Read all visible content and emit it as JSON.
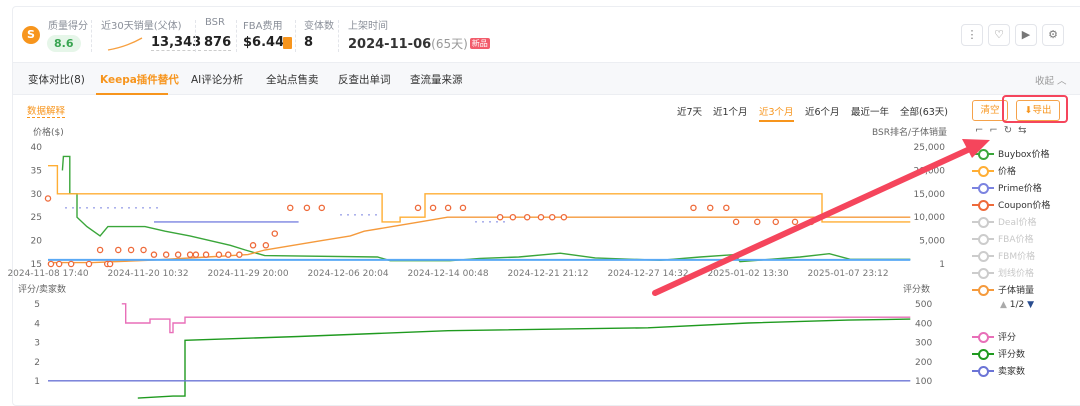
{
  "header": {
    "quality": {
      "label": "质量得分",
      "value": "8.6"
    },
    "sales30": {
      "label": "近30天销量(父体)",
      "value": "13,343"
    },
    "bsr": {
      "label": "BSR",
      "value": "876"
    },
    "fba": {
      "label": "FBA费用",
      "value": "$6.44"
    },
    "variants": {
      "label": "变体数",
      "value": "8"
    },
    "listed": {
      "label": "上架时间",
      "date": "2024-11-06",
      "days": "(65天)",
      "badge": "新品"
    },
    "icons": [
      "more-icon",
      "heart-icon",
      "video-icon",
      "settings-icon"
    ]
  },
  "tabs": [
    "变体对比(8)",
    "Keepa插件替代",
    "AI评论分析",
    "全站点售卖",
    "反查出单词",
    "查流量来源"
  ],
  "active_tab": "Keepa插件替代",
  "collapse_label": "收起 ︿",
  "data_explain": "数据解释",
  "ranges": [
    "近7天",
    "近1个月",
    "近3个月",
    "近6个月",
    "最近一年",
    "全部(63天)"
  ],
  "active_range": "近3个月",
  "buttons": {
    "clear": "清空",
    "export": "导出"
  },
  "legend_page": "1/2",
  "colors": {
    "accent": "#f7951d",
    "annotation": "#f5455c"
  },
  "chart_data": [
    {
      "type": "line",
      "ylabel_left": "价格($)",
      "ylabel_right": "BSR排名/子体销量",
      "ylim_left": [
        15,
        40
      ],
      "ylim_right": [
        1,
        25000
      ],
      "yticks_left": [
        "40",
        "35",
        "30",
        "25",
        "20",
        "15"
      ],
      "yticks_right": [
        "25,000",
        "20,000",
        "15,000",
        "10,000",
        "5,000",
        "1"
      ],
      "x_ticks": [
        "2024-11-08 17:40",
        "2024-11-20 10:32",
        "2024-11-29 20:00",
        "2024-12-06 20:04",
        "2024-12-14 00:48",
        "2024-12-21 21:12",
        "2024-12-27 14:32",
        "2025-01-02 13:30",
        "2025-01-07 23:12"
      ],
      "legend": [
        {
          "name": "Buybox价格",
          "color": "#3aa63a",
          "on": true
        },
        {
          "name": "价格",
          "color": "#ffae34",
          "on": true
        },
        {
          "name": "Prime价格",
          "color": "#7b83e0",
          "on": true
        },
        {
          "name": "Coupon价格",
          "color": "#ee6a3a",
          "on": true
        },
        {
          "name": "Deal价格",
          "color": "#cccccc",
          "on": false
        },
        {
          "name": "FBA价格",
          "color": "#cccccc",
          "on": false
        },
        {
          "name": "FBM价格",
          "color": "#cccccc",
          "on": false
        },
        {
          "name": "划线价格",
          "color": "#cccccc",
          "on": false
        },
        {
          "name": "子体销量",
          "color": "#f59a3c",
          "on": true
        }
      ],
      "series": [
        {
          "name": "Buybox价格",
          "axis": "left",
          "color": "#3aa63a",
          "points": [
            [
              "2024-11-10 10:00",
              35
            ],
            [
              "2024-11-10 13:00",
              38
            ],
            [
              "2024-11-11 07:00",
              38
            ],
            [
              "2024-11-11 07:00",
              30
            ],
            [
              "2024-11-12 03:00",
              30
            ],
            [
              "2024-11-12 03:00",
              25
            ],
            [
              "2024-11-13 07:00",
              23
            ],
            [
              "2024-11-14 20:00",
              21
            ],
            [
              "2024-11-15 18:00",
              23
            ],
            [
              "2024-11-16 23:00",
              23
            ],
            [
              "2024-11-20 02:00",
              23
            ],
            [
              "2024-11-22 01:00",
              22
            ],
            [
              "2024-11-24 09:00",
              21
            ],
            [
              "2024-11-28 04:00",
              19
            ],
            [
              "2024-11-29 14:00",
              18
            ],
            [
              "2024-12-01 00:00",
              16.8
            ],
            [
              "2024-12-08 23:00",
              16.5
            ],
            [
              "2024-12-09 21:00",
              15.7
            ],
            [
              "2024-12-14 05:00",
              15.7
            ],
            [
              "2024-12-16 13:00",
              16.2
            ],
            [
              "2024-12-19 14:00",
              16.5
            ],
            [
              "2024-12-22 14:00",
              17.3
            ],
            [
              "2024-12-24 14:00",
              16.3
            ],
            [
              "2024-12-28 08:00",
              15.8
            ],
            [
              "2024-12-30 17:00",
              16.5
            ],
            [
              "2025-01-01 19:00",
              17
            ],
            [
              "2025-01-02 02:00",
              15.5
            ],
            [
              "2025-01-05 09:00",
              16.5
            ],
            [
              "2025-01-06 23:00",
              17.2
            ],
            [
              "2025-01-08 02:00",
              16
            ],
            [
              "2025-01-11 08:00",
              16
            ]
          ]
        },
        {
          "name": "价格",
          "axis": "left",
          "color": "#ffae34",
          "points": [
            [
              "2024-11-08 17:40",
              36
            ],
            [
              "2024-11-09 20:00",
              36
            ],
            [
              "2024-11-09 20:00",
              30
            ],
            [
              "2024-12-09 07:00",
              30
            ],
            [
              "2024-12-09 07:00",
              24
            ],
            [
              "2024-12-10 14:00",
              24
            ],
            [
              "2024-12-10 14:00",
              25
            ],
            [
              "2024-12-12 09:00",
              25
            ],
            [
              "2024-12-12 09:00",
              30
            ],
            [
              "2025-01-06 13:30",
              30
            ],
            [
              "2025-01-06 13:30",
              24
            ],
            [
              "2025-01-11 08:00",
              24
            ]
          ]
        },
        {
          "name": "Prime价格",
          "axis": "left",
          "color": "#7b83e0",
          "points": [
            [
              "2024-11-21 00:00",
              24
            ],
            [
              "2024-12-03 09:00",
              24
            ]
          ]
        },
        {
          "name": "子体销量",
          "axis": "right",
          "color": "#f59a3c",
          "points": [
            [
              "2024-11-08 17:40",
              300
            ],
            [
              "2024-11-14 00:00",
              300
            ],
            [
              "2024-11-20 10:32",
              800
            ],
            [
              "2024-11-26 00:00",
              1500
            ],
            [
              "2024-11-29 20:00",
              2000
            ],
            [
              "2024-12-01 00:00",
              3000
            ],
            [
              "2024-12-03 00:00",
              4000
            ],
            [
              "2024-12-05 00:00",
              5000
            ],
            [
              "2024-12-07 00:00",
              6000
            ],
            [
              "2024-12-08 00:00",
              7000
            ],
            [
              "2024-12-10 00:00",
              8000
            ],
            [
              "2024-12-12 00:00",
              9000
            ],
            [
              "2024-12-14 00:00",
              10000
            ],
            [
              "2025-01-11 08:00",
              10000
            ]
          ]
        },
        {
          "axis": "right",
          "color": "#5aa9f5",
          "points": [
            [
              "2024-11-08 17:40",
              876
            ],
            [
              "2025-01-11 08:00",
              876
            ]
          ]
        }
      ],
      "coupon_points": [
        [
          "2024-11-08 17:40",
          29
        ],
        [
          "2024-11-09 02:00",
          15
        ],
        [
          "2024-11-10 01:00",
          15
        ],
        [
          "2024-11-11 10:40",
          15
        ],
        [
          "2024-11-13 12:50",
          15
        ],
        [
          "2024-11-14 20:00",
          18
        ],
        [
          "2024-11-15 16:00",
          15
        ],
        [
          "2024-11-16 00:00",
          15
        ],
        [
          "2024-11-16 23:00",
          18
        ],
        [
          "2024-11-18 11:00",
          18
        ],
        [
          "2024-11-19 22:00",
          18
        ],
        [
          "2024-11-21 00:00",
          17
        ],
        [
          "2024-11-22 03:30",
          17
        ],
        [
          "2024-11-23 06:30",
          17
        ],
        [
          "2024-11-24 09:30",
          17
        ],
        [
          "2024-11-24 22:30",
          17
        ],
        [
          "2024-11-25 21:30",
          17
        ],
        [
          "2024-11-27 02:30",
          17
        ],
        [
          "2024-11-27 23:30",
          17
        ],
        [
          "2024-11-29 00:30",
          17
        ],
        [
          "2024-11-30 04:30",
          19
        ],
        [
          "2024-12-01 02:00",
          19
        ],
        [
          "2024-12-01 17:00",
          21.5
        ],
        [
          "2024-12-02 19:00",
          27
        ],
        [
          "2024-12-03 23:00",
          27
        ],
        [
          "2024-12-05 00:00",
          27
        ],
        [
          "2024-12-11 21:00",
          27
        ],
        [
          "2024-12-12 23:00",
          27
        ],
        [
          "2024-12-14 01:00",
          27
        ],
        [
          "2024-12-15 05:00",
          27
        ],
        [
          "2024-12-18 03:00",
          25
        ],
        [
          "2024-12-19 03:00",
          25
        ],
        [
          "2024-12-20 06:00",
          25
        ],
        [
          "2024-12-21 08:00",
          25
        ],
        [
          "2024-12-22 03:00",
          25
        ],
        [
          "2024-12-22 19:00",
          25
        ],
        [
          "2024-12-30 07:30",
          27
        ],
        [
          "2024-12-31 07:30",
          27
        ],
        [
          "2025-01-01 06:30",
          27
        ],
        [
          "2025-01-01 20:30",
          24
        ],
        [
          "2025-01-03 01:30",
          24
        ],
        [
          "2025-01-04 01:30",
          24
        ],
        [
          "2025-01-05 02:30",
          24
        ],
        [
          "2025-01-05 23:30",
          24
        ]
      ]
    },
    {
      "type": "line",
      "ylabel_left": "评分/卖家数",
      "ylabel_right": "评分数",
      "ylim_left": [
        0,
        5
      ],
      "ylim_right": [
        0,
        500
      ],
      "yticks_left": [
        "5",
        "4",
        "3",
        "2",
        "1"
      ],
      "yticks_right": [
        "500",
        "400",
        "300",
        "200",
        "100"
      ],
      "legend": [
        {
          "name": "评分",
          "color": "#e86fb8",
          "on": true
        },
        {
          "name": "评分数",
          "color": "#1f9a1f",
          "on": true
        },
        {
          "name": "卖家数",
          "color": "#6b74d6",
          "on": true
        }
      ],
      "series": [
        {
          "name": "评分",
          "axis": "left",
          "color": "#e86fb8",
          "points": [
            [
              "2024-11-17 09:00",
              5
            ],
            [
              "2024-11-17 20:00",
              5
            ],
            [
              "2024-11-17 20:00",
              4
            ],
            [
              "2024-11-20 15:00",
              4
            ],
            [
              "2024-11-20 15:00",
              4.2
            ],
            [
              "2024-11-22 12:00",
              4.2
            ],
            [
              "2024-11-22 12:00",
              3.5
            ],
            [
              "2024-11-22 19:00",
              3.5
            ],
            [
              "2024-11-22 19:00",
              4
            ],
            [
              "2024-11-23 22:00",
              4
            ],
            [
              "2024-11-23 22:00",
              4.3
            ],
            [
              "2025-01-11 08:00",
              4.3
            ]
          ]
        },
        {
          "name": "评分数",
          "axis": "right",
          "color": "#1f9a1f",
          "points": [
            [
              "2024-11-19 06:00",
              10
            ],
            [
              "2024-11-22 19:00",
              20
            ],
            [
              "2024-11-23 22:00",
              20
            ],
            [
              "2024-11-23 22:00",
              310
            ],
            [
              "2024-12-03 09:00",
              330
            ],
            [
              "2024-12-14 00:48",
              360
            ],
            [
              "2024-12-27 14:32",
              375
            ],
            [
              "2025-01-02 13:30",
              400
            ],
            [
              "2025-01-07 23:12",
              415
            ],
            [
              "2025-01-11 08:00",
              420
            ]
          ]
        },
        {
          "name": "卖家数",
          "axis": "left",
          "color": "#6b74d6",
          "points": [
            [
              "2024-11-08 17:40",
              1
            ],
            [
              "2025-01-11 08:00",
              1
            ]
          ]
        }
      ]
    }
  ]
}
